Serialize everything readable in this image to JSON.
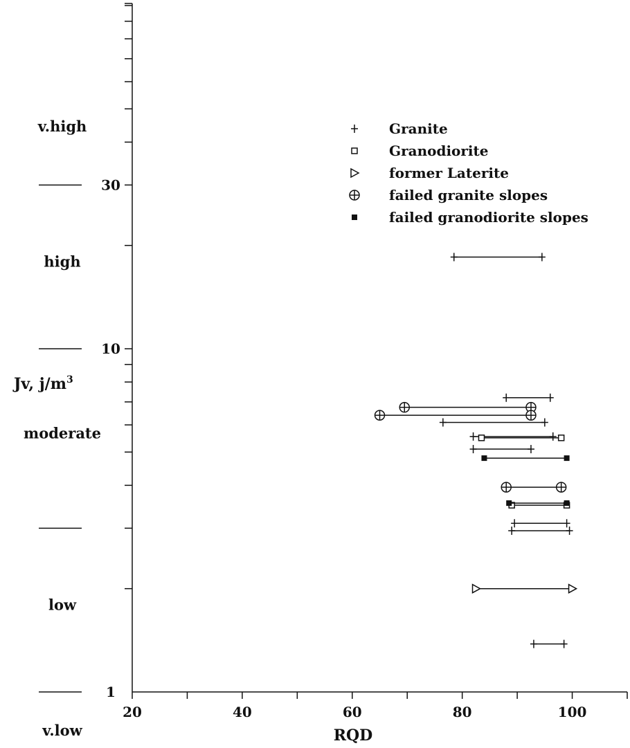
{
  "chart_data": {
    "type": "range",
    "title": "",
    "xlabel": "RQD",
    "ylabel": "Jv, j/m³",
    "y_scale": "log",
    "xlim": [
      20,
      110
    ],
    "ylim": [
      1,
      100
    ],
    "x_ticks": [
      20,
      30,
      40,
      50,
      60,
      70,
      80,
      90,
      100,
      110
    ],
    "x_tick_labels": [
      "20",
      "40",
      "60",
      "80",
      "100"
    ],
    "y_tick_labels": [
      "1",
      "10",
      "30"
    ],
    "jv_classes": [
      "v.high",
      "high",
      "moderate",
      "low",
      "v.low"
    ],
    "class_boundaries": [
      1,
      3,
      10,
      30
    ],
    "legend": [
      {
        "name": "Granite",
        "marker": "plus"
      },
      {
        "name": "Granodiorite",
        "marker": "open-square"
      },
      {
        "name": "former Laterite",
        "marker": "open-triangle"
      },
      {
        "name": "failed granite slopes",
        "marker": "circle-plus"
      },
      {
        "name": "failed granodiorite slopes",
        "marker": "filled-square"
      }
    ],
    "legend_position": "top-right",
    "series": [
      {
        "name": "Granite",
        "ranges": [
          {
            "y": 18.5,
            "x": [
              78.5,
              94.5
            ]
          },
          {
            "y": 7.2,
            "x": [
              88,
              96
            ]
          },
          {
            "y": 6.1,
            "x": [
              76.5,
              95
            ]
          },
          {
            "y": 5.55,
            "x": [
              82,
              96.5
            ]
          },
          {
            "y": 5.1,
            "x": [
              82,
              92.5
            ]
          },
          {
            "y": 3.1,
            "x": [
              89.5,
              99
            ]
          },
          {
            "y": 2.95,
            "x": [
              89,
              99.5
            ]
          },
          {
            "y": 1.38,
            "x": [
              93,
              98.5
            ]
          }
        ]
      },
      {
        "name": "Granodiorite",
        "ranges": [
          {
            "y": 5.5,
            "x": [
              83.5,
              98
            ]
          },
          {
            "y": 3.5,
            "x": [
              89,
              99
            ]
          }
        ]
      },
      {
        "name": "former Laterite",
        "ranges": [
          {
            "y": 2.0,
            "x": [
              82.5,
              100
            ]
          }
        ]
      },
      {
        "name": "failed granite slopes",
        "ranges": [
          {
            "y": 6.75,
            "x": [
              69.5,
              92.5
            ]
          },
          {
            "y": 6.4,
            "x": [
              65,
              92.5
            ]
          },
          {
            "y": 3.95,
            "x": [
              88,
              98
            ]
          }
        ]
      },
      {
        "name": "failed granodiorite slopes",
        "ranges": [
          {
            "y": 4.8,
            "x": [
              84,
              99
            ]
          },
          {
            "y": 3.55,
            "x": [
              88.5,
              99
            ]
          }
        ]
      }
    ],
    "grid": false
  }
}
